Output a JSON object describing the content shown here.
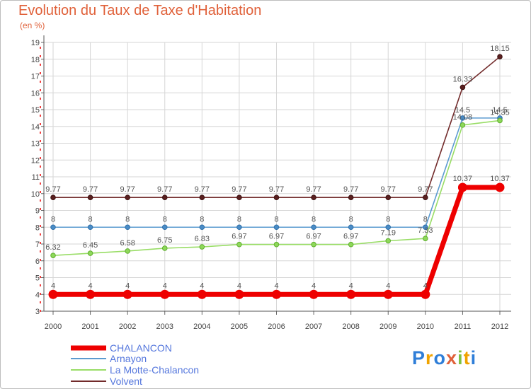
{
  "header": {
    "title": "Evolution du Taux de Taxe d'Habitation",
    "unit": "(en %)"
  },
  "brand": {
    "letters": [
      "P",
      "r",
      "o",
      "x",
      "i",
      "t",
      "i"
    ],
    "colors": [
      "#2f7ed8",
      "#f0a300",
      "#2f7ed8",
      "#e0613a",
      "#7dc242",
      "#f0a300",
      "#2f7ed8"
    ]
  },
  "chart_data": {
    "type": "line",
    "title": "Evolution du Taux de Taxe d'Habitation",
    "ylabel": "(en %)",
    "xlabel": "",
    "x": [
      "2000",
      "2001",
      "2002",
      "2003",
      "2004",
      "2005",
      "2006",
      "2007",
      "2008",
      "2009",
      "2010",
      "2011",
      "2012"
    ],
    "ylim": [
      3,
      19
    ],
    "yticks": [
      "3",
      "4",
      "5",
      "6",
      "7",
      "8",
      "9",
      "10",
      "11",
      "12",
      "13",
      "14",
      "15",
      "16",
      "17",
      "18",
      "19"
    ],
    "grid": true,
    "legend_position": "bottom-left",
    "series": [
      {
        "name": "Volvent",
        "color": "#722b2b",
        "values": [
          9.77,
          9.77,
          9.77,
          9.77,
          9.77,
          9.77,
          9.77,
          9.77,
          9.77,
          9.77,
          9.77,
          16.33,
          18.15
        ],
        "labels": [
          "9.77",
          "9.77",
          "9.77",
          "9.77",
          "9.77",
          "9.77",
          "9.77",
          "9.77",
          "9.77",
          "9.77",
          "9.77",
          "16.33",
          "18.15"
        ]
      },
      {
        "name": "Arnayon",
        "color": "#5b9bd0",
        "values": [
          8,
          8,
          8,
          8,
          8,
          8,
          8,
          8,
          8,
          8,
          8,
          14.5,
          14.5
        ],
        "labels": [
          "8",
          "8",
          "8",
          "8",
          "8",
          "8",
          "8",
          "8",
          "8",
          "8",
          "8",
          "14.5",
          "14.5"
        ]
      },
      {
        "name": "La Motte-Chalancon",
        "color": "#99dd66",
        "values": [
          6.32,
          6.45,
          6.58,
          6.75,
          6.83,
          6.97,
          6.97,
          6.97,
          6.97,
          7.19,
          7.33,
          14.08,
          14.35
        ],
        "labels": [
          "6.32",
          "6.45",
          "6.58",
          "6.75",
          "6.83",
          "6.97",
          "6.97",
          "6.97",
          "6.97",
          "7.19",
          "7.33",
          "14.08",
          "14.35"
        ]
      },
      {
        "name": "CHALANCON",
        "color": "#ee0000",
        "values": [
          4,
          4,
          4,
          4,
          4,
          4,
          4,
          4,
          4,
          4,
          4,
          10.37,
          10.37
        ],
        "labels": [
          "4",
          "4",
          "4",
          "4",
          "4",
          "4",
          "4",
          "4",
          "4",
          "4",
          "4",
          "10.37",
          "10.37"
        ]
      }
    ],
    "legend": [
      "CHALANCON",
      "Arnayon",
      "La Motte-Chalancon",
      "Volvent"
    ]
  }
}
